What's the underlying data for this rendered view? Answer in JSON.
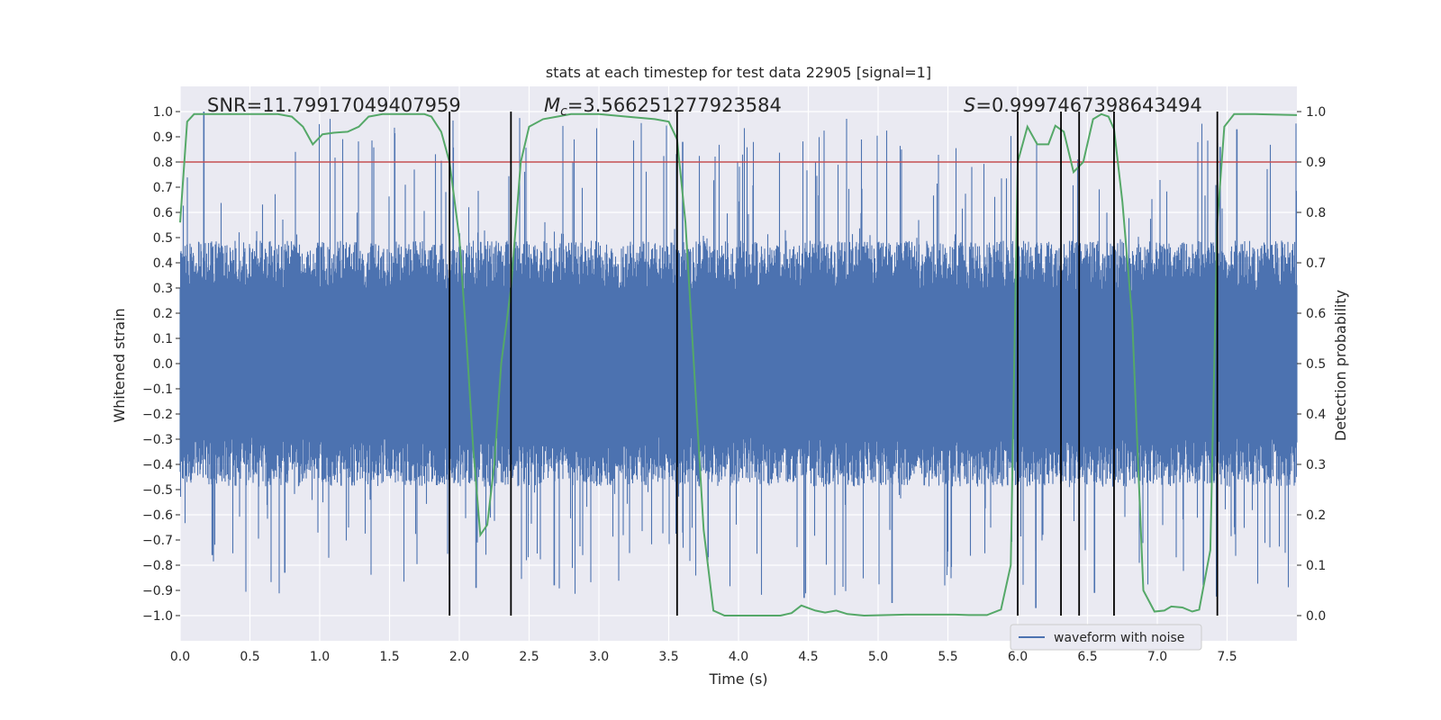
{
  "chart_data": {
    "type": "line",
    "title": "stats at each timestep for test data 22905 [signal=1]",
    "xlabel": "Time (s)",
    "ylabel": "Whitened strain",
    "y2label": "Detection probability",
    "xlim": [
      0.0,
      8.0
    ],
    "ylim": [
      -1.1,
      1.1
    ],
    "y2lim": [
      -0.05,
      1.05
    ],
    "xticks": [
      0.0,
      0.5,
      1.0,
      1.5,
      2.0,
      2.5,
      3.0,
      3.5,
      4.0,
      4.5,
      5.0,
      5.5,
      6.0,
      6.5,
      7.0,
      7.5
    ],
    "yticks": [
      -1.0,
      -0.9,
      -0.8,
      -0.7,
      -0.6,
      -0.5,
      -0.4,
      -0.3,
      -0.2,
      -0.1,
      0.0,
      0.1,
      0.2,
      0.3,
      0.4,
      0.5,
      0.6,
      0.7,
      0.8,
      0.9,
      1.0
    ],
    "y2ticks": [
      0.0,
      0.1,
      0.2,
      0.3,
      0.4,
      0.5,
      0.6,
      0.7,
      0.8,
      0.9,
      1.0
    ],
    "xtick_labels": [
      "0.0",
      "0.5",
      "1.0",
      "1.5",
      "2.0",
      "2.5",
      "3.0",
      "3.5",
      "4.0",
      "4.5",
      "5.0",
      "5.5",
      "6.0",
      "6.5",
      "7.0",
      "7.5"
    ],
    "ytick_labels": [
      "−1.0",
      "−0.9",
      "−0.8",
      "−0.7",
      "−0.6",
      "−0.5",
      "−0.4",
      "−0.3",
      "−0.2",
      "−0.1",
      "0.0",
      "0.1",
      "0.2",
      "0.3",
      "0.4",
      "0.5",
      "0.6",
      "0.7",
      "0.8",
      "0.9",
      "1.0"
    ],
    "y2tick_labels": [
      "0.0",
      "0.1",
      "0.2",
      "0.3",
      "0.4",
      "0.5",
      "0.6",
      "0.7",
      "0.8",
      "0.9",
      "1.0"
    ],
    "threshold": 0.9,
    "vlines": [
      1.93,
      2.37,
      3.56,
      6.0,
      6.31,
      6.44,
      6.69,
      7.43
    ],
    "vline_range": [
      -1.0,
      1.0
    ],
    "waveform": {
      "name": "waveform with noise",
      "typical_amplitude": 0.4,
      "peaks": [
        {
          "t": 0.17,
          "y": 1.0
        },
        {
          "t": 0.23,
          "y": -0.76
        },
        {
          "t": 0.75,
          "y": -0.83
        },
        {
          "t": 1.93,
          "y": -0.84
        },
        {
          "t": 2.12,
          "y": -0.89
        },
        {
          "t": 2.68,
          "y": -0.88
        },
        {
          "t": 3.6,
          "y": 0.88
        },
        {
          "t": 4.47,
          "y": -0.93
        },
        {
          "t": 5.1,
          "y": -0.95
        },
        {
          "t": 6.13,
          "y": -0.97
        },
        {
          "t": 6.55,
          "y": -0.91
        },
        {
          "t": 7.33,
          "y": -0.88
        },
        {
          "t": 7.45,
          "y": 0.86
        },
        {
          "t": 7.57,
          "y": 0.93
        }
      ]
    },
    "probability": {
      "name": "detection probability",
      "points": [
        [
          0.0,
          0.78
        ],
        [
          0.05,
          0.98
        ],
        [
          0.1,
          0.995
        ],
        [
          0.3,
          0.995
        ],
        [
          0.5,
          0.995
        ],
        [
          0.7,
          0.995
        ],
        [
          0.8,
          0.99
        ],
        [
          0.88,
          0.97
        ],
        [
          0.95,
          0.935
        ],
        [
          1.02,
          0.955
        ],
        [
          1.1,
          0.958
        ],
        [
          1.2,
          0.96
        ],
        [
          1.28,
          0.97
        ],
        [
          1.35,
          0.99
        ],
        [
          1.45,
          0.995
        ],
        [
          1.6,
          0.995
        ],
        [
          1.75,
          0.995
        ],
        [
          1.8,
          0.99
        ],
        [
          1.87,
          0.96
        ],
        [
          1.93,
          0.9
        ],
        [
          2.0,
          0.75
        ],
        [
          2.05,
          0.55
        ],
        [
          2.1,
          0.33
        ],
        [
          2.15,
          0.16
        ],
        [
          2.2,
          0.18
        ],
        [
          2.25,
          0.3
        ],
        [
          2.3,
          0.5
        ],
        [
          2.37,
          0.65
        ],
        [
          2.44,
          0.9
        ],
        [
          2.5,
          0.97
        ],
        [
          2.6,
          0.985
        ],
        [
          2.7,
          0.99
        ],
        [
          2.8,
          0.995
        ],
        [
          3.0,
          0.995
        ],
        [
          3.2,
          0.99
        ],
        [
          3.4,
          0.985
        ],
        [
          3.5,
          0.98
        ],
        [
          3.56,
          0.945
        ],
        [
          3.62,
          0.78
        ],
        [
          3.68,
          0.5
        ],
        [
          3.75,
          0.17
        ],
        [
          3.82,
          0.01
        ],
        [
          3.9,
          0.0
        ],
        [
          4.1,
          0.0
        ],
        [
          4.3,
          0.0
        ],
        [
          4.38,
          0.005
        ],
        [
          4.45,
          0.02
        ],
        [
          4.55,
          0.01
        ],
        [
          4.62,
          0.006
        ],
        [
          4.7,
          0.01
        ],
        [
          4.78,
          0.003
        ],
        [
          4.9,
          0.0
        ],
        [
          5.2,
          0.002
        ],
        [
          5.4,
          0.002
        ],
        [
          5.55,
          0.002
        ],
        [
          5.65,
          0.001
        ],
        [
          5.78,
          0.001
        ],
        [
          5.88,
          0.012
        ],
        [
          5.95,
          0.1
        ],
        [
          6.0,
          0.9
        ],
        [
          6.07,
          0.97
        ],
        [
          6.14,
          0.935
        ],
        [
          6.22,
          0.935
        ],
        [
          6.27,
          0.972
        ],
        [
          6.33,
          0.96
        ],
        [
          6.4,
          0.88
        ],
        [
          6.47,
          0.9
        ],
        [
          6.54,
          0.985
        ],
        [
          6.6,
          0.995
        ],
        [
          6.65,
          0.99
        ],
        [
          6.69,
          0.965
        ],
        [
          6.75,
          0.82
        ],
        [
          6.82,
          0.59
        ],
        [
          6.9,
          0.05
        ],
        [
          6.98,
          0.008
        ],
        [
          7.05,
          0.01
        ],
        [
          7.1,
          0.018
        ],
        [
          7.18,
          0.016
        ],
        [
          7.25,
          0.008
        ],
        [
          7.3,
          0.012
        ],
        [
          7.38,
          0.13
        ],
        [
          7.43,
          0.78
        ],
        [
          7.48,
          0.97
        ],
        [
          7.55,
          0.995
        ],
        [
          7.7,
          0.995
        ],
        [
          8.0,
          0.993
        ]
      ]
    },
    "annotations": {
      "snr": "SNR=11.79917049407959",
      "mc_symbol": "M",
      "mc_sub": "c",
      "mc_value": "=3.566251277923584",
      "s_symbol": "S",
      "s_value": "=0.9997467398643494"
    },
    "legend": {
      "label": "waveform with noise",
      "position": "lower-right"
    }
  },
  "colors": {
    "axes_bg": "#eaeaf2",
    "grid": "#ffffff",
    "waveform": "#4c72b0",
    "probability": "#55a868",
    "threshold": "#c44e52",
    "vline": "#000000",
    "text": "#262626"
  }
}
